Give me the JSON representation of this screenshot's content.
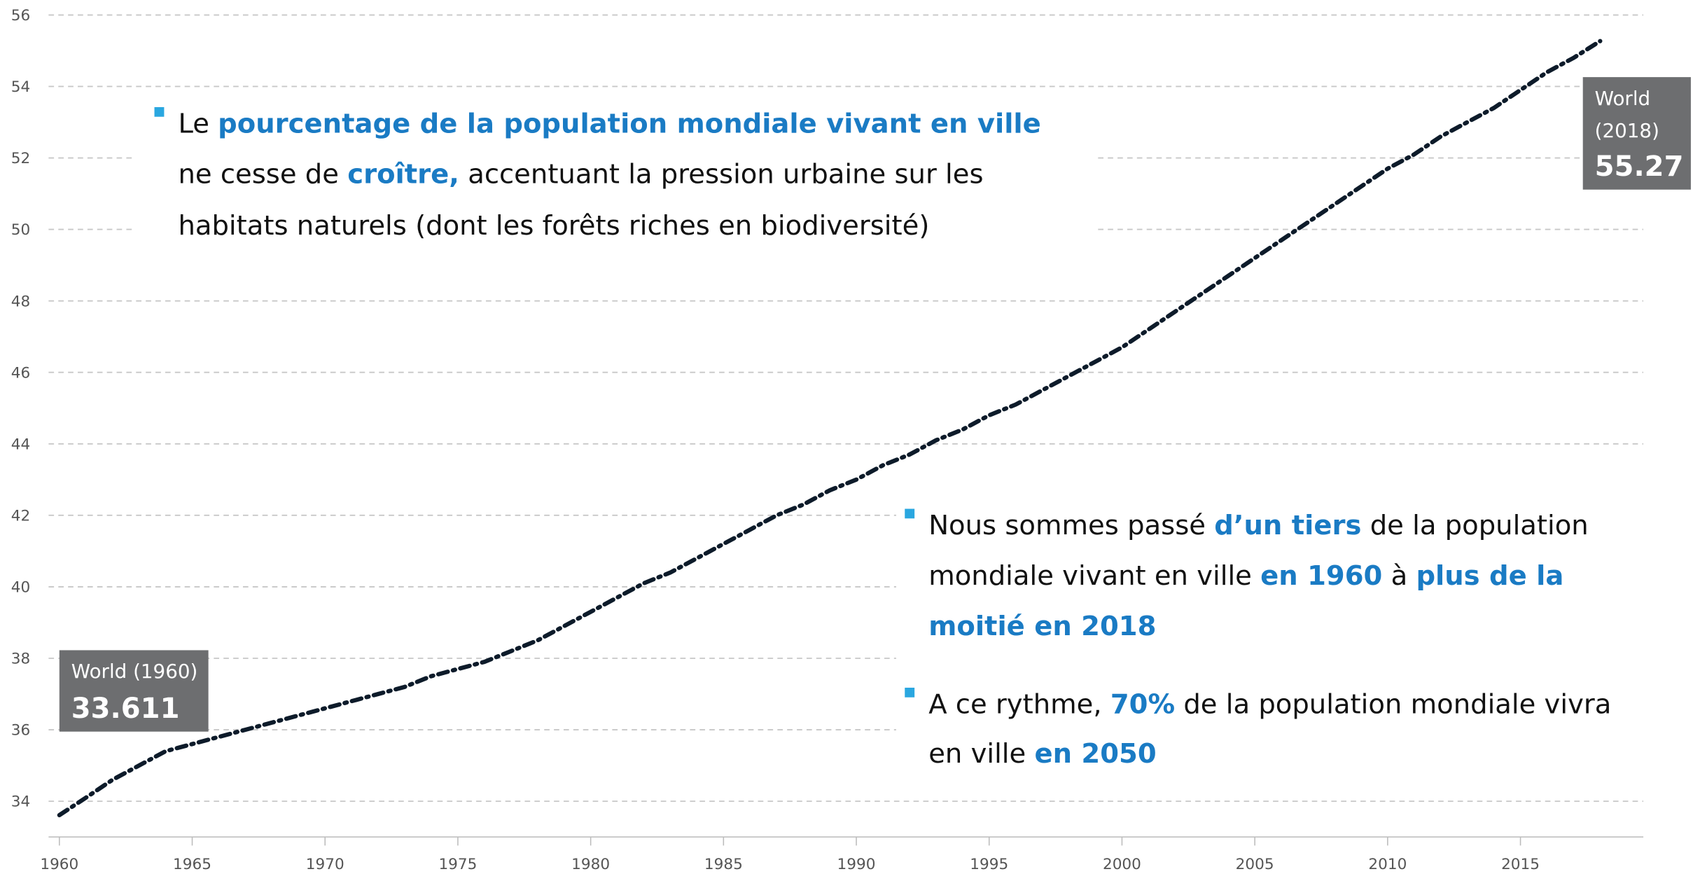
{
  "chart_data": {
    "type": "line",
    "x": [
      1960,
      1961,
      1962,
      1963,
      1964,
      1965,
      1966,
      1967,
      1968,
      1969,
      1970,
      1971,
      1972,
      1973,
      1974,
      1975,
      1976,
      1977,
      1978,
      1979,
      1980,
      1981,
      1982,
      1983,
      1984,
      1985,
      1986,
      1987,
      1988,
      1989,
      1990,
      1991,
      1992,
      1993,
      1994,
      1995,
      1996,
      1997,
      1998,
      1999,
      2000,
      2001,
      2002,
      2003,
      2004,
      2005,
      2006,
      2007,
      2008,
      2009,
      2010,
      2011,
      2012,
      2013,
      2014,
      2015,
      2016,
      2017,
      2018
    ],
    "series": [
      {
        "name": "World",
        "color": "#0d1b2a",
        "values": [
          33.611,
          34.1,
          34.6,
          35.0,
          35.4,
          35.6,
          35.8,
          36.0,
          36.2,
          36.4,
          36.6,
          36.8,
          37.0,
          37.2,
          37.5,
          37.7,
          37.9,
          38.2,
          38.5,
          38.9,
          39.3,
          39.7,
          40.1,
          40.4,
          40.8,
          41.2,
          41.6,
          42.0,
          42.3,
          42.7,
          43.0,
          43.4,
          43.7,
          44.1,
          44.4,
          44.8,
          45.1,
          45.5,
          45.9,
          46.3,
          46.7,
          47.2,
          47.7,
          48.2,
          48.7,
          49.2,
          49.7,
          50.2,
          50.7,
          51.2,
          51.7,
          52.1,
          52.6,
          53.0,
          53.4,
          53.9,
          54.4,
          54.8,
          55.27
        ]
      }
    ],
    "xlim": [
      1960,
      2018
    ],
    "xticks": [
      1960,
      1965,
      1970,
      1975,
      1980,
      1985,
      1990,
      1995,
      2000,
      2005,
      2010,
      2015
    ],
    "ylim": [
      33,
      56
    ],
    "yticks": [
      34,
      36,
      38,
      40,
      42,
      44,
      46,
      48,
      50,
      52,
      54,
      56
    ],
    "grid": true,
    "annotations": [
      {
        "lines": [
          "World (1960)"
        ],
        "value": "33.611"
      },
      {
        "lines": [
          "World",
          "(2018)"
        ],
        "value": "55.27"
      }
    ],
    "notes": [
      {
        "lines": [
          [
            {
              "text": "Le "
            },
            {
              "text": "pourcentage de la population mondiale vivant en ville",
              "em": true
            }
          ],
          [
            {
              "text": "ne cesse de "
            },
            {
              "text": "croître,",
              "em": true
            },
            {
              "text": " accentuant la pression urbaine sur les"
            }
          ],
          [
            {
              "text": "habitats naturels (dont les forêts riches en biodiversité)"
            }
          ]
        ]
      },
      {
        "lines": [
          [
            {
              "text": "Nous sommes passé "
            },
            {
              "text": "d’un tiers",
              "em": true
            },
            {
              "text": " de la population"
            }
          ],
          [
            {
              "text": "mondiale vivant en ville "
            },
            {
              "text": "en 1960",
              "em": true
            },
            {
              "text": " à "
            },
            {
              "text": "plus de la",
              "em": true
            }
          ],
          [
            {
              "text": "moitié en 2018",
              "em": true
            }
          ]
        ]
      },
      {
        "lines": [
          [
            {
              "text": "A ce rythme, "
            },
            {
              "text": "70%",
              "em": true
            },
            {
              "text": " de la population mondiale vivra"
            }
          ],
          [
            {
              "text": "en ville "
            },
            {
              "text": "en 2050",
              "em": true
            }
          ]
        ]
      }
    ]
  }
}
